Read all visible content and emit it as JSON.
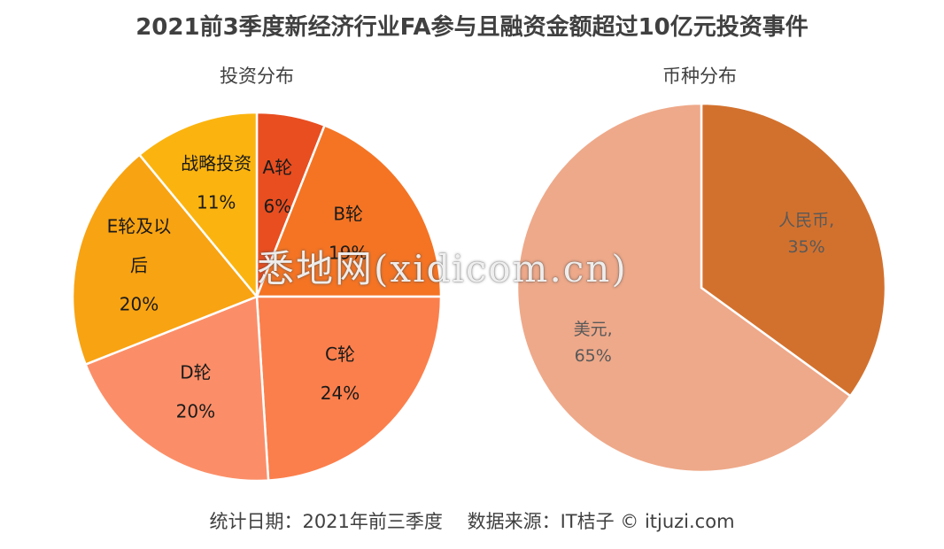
{
  "title": "2021前3季度新经济行业FA参与且融资金额超过10亿元投资事件",
  "footer": "统计日期：2021年前三季度　 数据来源：IT桔子 © itjuzi.com",
  "watermark": "悉地网(xidicom.cn)",
  "chart_data": [
    {
      "type": "pie",
      "title": "投资分布",
      "slices": [
        {
          "label": "A轮",
          "value": 6,
          "display": "6%",
          "color": "#E84E20"
        },
        {
          "label": "B轮",
          "value": 19,
          "display": "19%",
          "color": "#F47424"
        },
        {
          "label": "C轮",
          "value": 24,
          "display": "24%",
          "color": "#FB7F4C"
        },
        {
          "label": "D轮",
          "value": 20,
          "display": "20%",
          "color": "#FB8E68"
        },
        {
          "label": "E轮及以后",
          "label_lines": [
            "E轮及以",
            "后"
          ],
          "value": 20,
          "display": "20%",
          "color": "#F8A312"
        },
        {
          "label": "战略投资",
          "value": 11,
          "display": "11%",
          "color": "#FBB40F"
        }
      ]
    },
    {
      "type": "pie",
      "title": "币种分布",
      "slices": [
        {
          "label": "人民币",
          "label_text": "人民币,",
          "value": 35,
          "display": "35%",
          "color": "#D2712E"
        },
        {
          "label": "美元",
          "label_text": "美元,",
          "value": 65,
          "display": "65%",
          "color": "#EEA98A"
        }
      ]
    }
  ]
}
